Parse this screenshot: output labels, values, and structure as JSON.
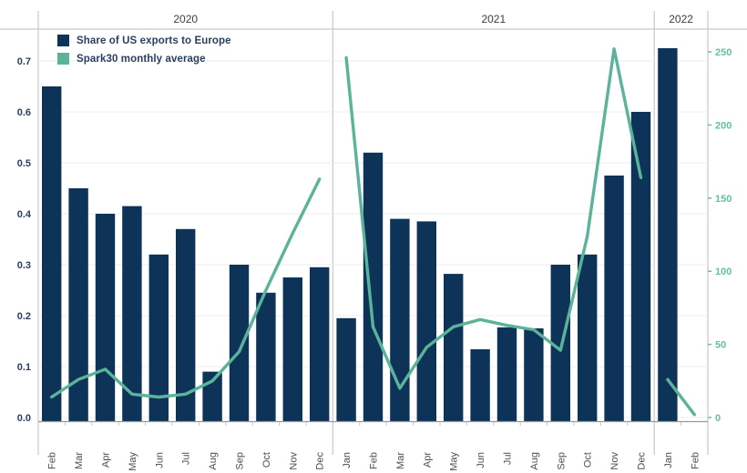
{
  "chart_data": {
    "type": "bar+line",
    "title": "",
    "grid": true,
    "legend_position": "top-left",
    "groups": [
      {
        "year": "2020",
        "months": [
          "Feb",
          "Mar",
          "Apr",
          "May",
          "Jun",
          "Jul",
          "Aug",
          "Sep",
          "Oct",
          "Nov",
          "Dec"
        ]
      },
      {
        "year": "2021",
        "months": [
          "Jan",
          "Feb",
          "Mar",
          "Apr",
          "May",
          "Jun",
          "Jul",
          "Aug",
          "Sep",
          "Oct",
          "Nov",
          "Dec"
        ]
      },
      {
        "year": "2022",
        "months": [
          "Jan",
          "Feb"
        ]
      }
    ],
    "series": [
      {
        "name": "Share of US exports to Europe",
        "kind": "bar",
        "axis": "left",
        "color": "#0d3359",
        "values": {
          "2020": [
            0.65,
            0.45,
            0.4,
            0.415,
            0.32,
            0.37,
            0.09,
            0.3,
            0.245,
            0.275,
            0.295
          ],
          "2021": [
            0.195,
            0.52,
            0.39,
            0.385,
            0.282,
            0.134,
            0.177,
            0.175,
            0.3,
            0.32,
            0.475,
            0.6
          ],
          "2022": [
            0.725,
            null
          ]
        }
      },
      {
        "name": "Spark30 monthly average",
        "kind": "line",
        "axis": "right",
        "color": "#5bb39a",
        "values": {
          "2020": [
            14,
            26,
            33,
            16,
            14,
            16,
            25,
            45,
            87,
            126,
            163
          ],
          "2021": [
            246,
            62,
            20,
            48,
            62,
            67,
            63,
            60,
            46,
            124,
            252,
            164
          ],
          "2022": [
            26,
            2
          ]
        }
      }
    ],
    "left_axis": {
      "ticks": [
        "0.0",
        "0.1",
        "0.2",
        "0.3",
        "0.4",
        "0.5",
        "0.6",
        "0.7"
      ],
      "min": 0,
      "max": 0.75,
      "label_color": "#2a3f5f"
    },
    "right_axis": {
      "ticks": [
        "0",
        "50",
        "100",
        "150",
        "200",
        "250"
      ],
      "min": 0,
      "max": 262,
      "label_color": "#63bfa6"
    }
  },
  "colors": {
    "background": "#ffffff",
    "gridline": "#ececec",
    "panel_divider": "#c8c8c8",
    "axis_line": "#999999",
    "month_label": "#4d4d4d",
    "year_label": "#3d3d3d"
  }
}
